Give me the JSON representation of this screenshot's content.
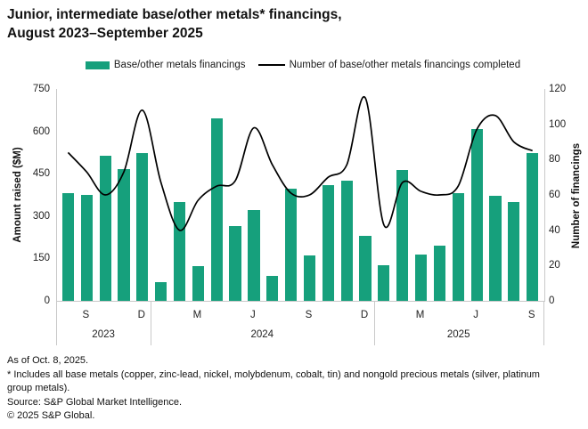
{
  "title": {
    "line1": "Junior, intermediate base/other metals* financings,",
    "line2": "August 2023–September 2025"
  },
  "legend": {
    "bar_label": "Base/other metals financings",
    "line_label": "Number of base/other metals financings completed"
  },
  "y_axis_left": {
    "title": "Amount raised ($M)",
    "ticks": [
      0,
      150,
      300,
      450,
      600,
      750
    ],
    "max": 750
  },
  "y_axis_right": {
    "title": "Number of financings",
    "ticks": [
      0,
      20,
      40,
      60,
      80,
      100,
      120
    ],
    "max": 120
  },
  "x_axis": {
    "month_tick_labels": [
      {
        "index": 1,
        "label": "S"
      },
      {
        "index": 4,
        "label": "D"
      },
      {
        "index": 7,
        "label": "M"
      },
      {
        "index": 10,
        "label": "J"
      },
      {
        "index": 13,
        "label": "S"
      },
      {
        "index": 16,
        "label": "D"
      },
      {
        "index": 19,
        "label": "M"
      },
      {
        "index": 22,
        "label": "J"
      },
      {
        "index": 25,
        "label": "S"
      }
    ],
    "year_groups": [
      {
        "label": "2023",
        "start_index": 0,
        "end_index": 4
      },
      {
        "label": "2024",
        "start_index": 5,
        "end_index": 16
      },
      {
        "label": "2025",
        "start_index": 17,
        "end_index": 25
      }
    ]
  },
  "chart_data": {
    "type": "bar",
    "title": "Junior, intermediate base/other metals* financings, August 2023–September 2025",
    "x": [
      "Aug 2023",
      "Sep 2023",
      "Oct 2023",
      "Nov 2023",
      "Dec 2023",
      "Jan 2024",
      "Feb 2024",
      "Mar 2024",
      "Apr 2024",
      "May 2024",
      "Jun 2024",
      "Jul 2024",
      "Aug 2024",
      "Sep 2024",
      "Oct 2024",
      "Nov 2024",
      "Dec 2024",
      "Jan 2025",
      "Feb 2025",
      "Mar 2025",
      "Apr 2025",
      "May 2025",
      "Jun 2025",
      "Jul 2025",
      "Aug 2025",
      "Sep 2025"
    ],
    "series": [
      {
        "name": "Base/other metals financings",
        "type": "bar",
        "axis": "left",
        "unit": "$M",
        "color": "#16A07C",
        "values": [
          383,
          374,
          514,
          466,
          522,
          66,
          351,
          124,
          645,
          264,
          321,
          88,
          396,
          161,
          409,
          427,
          231,
          126,
          464,
          165,
          194,
          381,
          608,
          372,
          351,
          524
        ]
      },
      {
        "name": "Number of base/other metals financings completed",
        "type": "line",
        "axis": "right",
        "unit": "count",
        "color": "#000000",
        "values": [
          84,
          73,
          60,
          73,
          108,
          67,
          40,
          57,
          65,
          68,
          98,
          77,
          61,
          60,
          70,
          77,
          115,
          43,
          67,
          62,
          60,
          65,
          97,
          105,
          90,
          85
        ]
      }
    ],
    "ylabel_left": "Amount raised ($M)",
    "ylabel_right": "Number of financings",
    "ylim_left": [
      0,
      750
    ],
    "ylim_right": [
      0,
      120
    ],
    "grid": false,
    "legend_position": "top"
  },
  "footnotes": {
    "as_of": "As of Oct. 8, 2025.",
    "note": "* Includes all base metals (copper, zinc-lead, nickel, molybdenum, cobalt, tin) and nongold precious metals (silver, platinum group metals).",
    "source": "Source: S&P Global Market Intelligence.",
    "copyright": "© 2025 S&P Global."
  },
  "colors": {
    "bar": "#16A07C",
    "line": "#000000",
    "axis_line": "#c9c9c9",
    "text": "#1a1a1a"
  }
}
